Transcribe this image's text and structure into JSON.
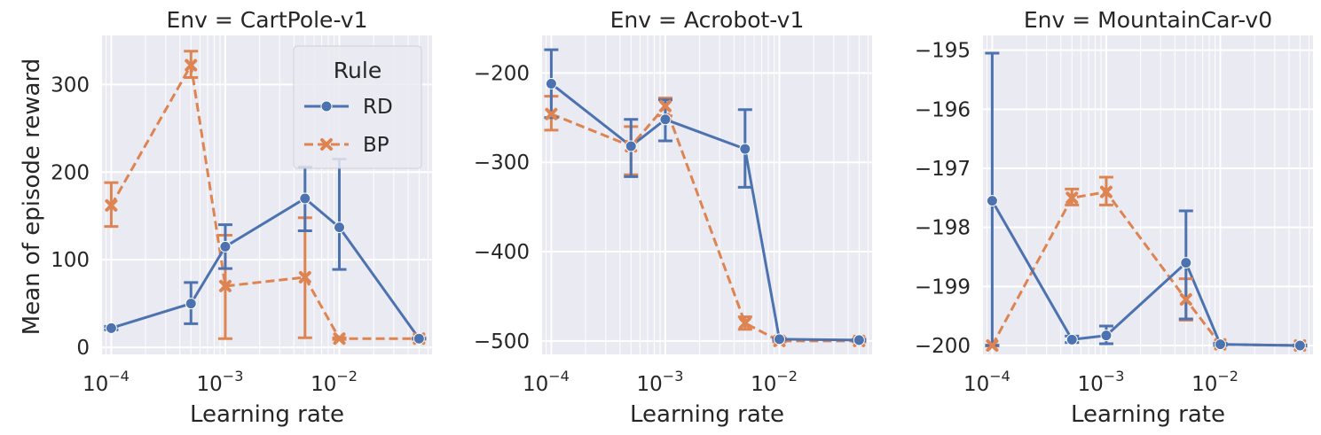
{
  "figure": {
    "ylabel": "Mean of episode reward",
    "xlabel": "Learning rate",
    "legend": {
      "title": "Rule",
      "location": "top-right",
      "panel": 0,
      "entries": [
        {
          "label": "RD",
          "series": "RD"
        },
        {
          "label": "BP",
          "series": "BP"
        }
      ]
    }
  },
  "colors": {
    "RD": "#4c72b0",
    "BP": "#dd8452",
    "panel_bg": "#eaeaf2",
    "grid": "#ffffff",
    "text": "#262626"
  },
  "chart_data": [
    {
      "type": "line",
      "title": "Env = CartPole-v1",
      "xlabel": "Learning rate",
      "ylabel": "Mean of episode reward",
      "xscale": "log",
      "xlim": [
        8.3e-05,
        0.065
      ],
      "ylim": [
        -8,
        356
      ],
      "yticks": [
        0,
        100,
        200,
        300
      ],
      "ytick_labels": [
        "0",
        "100",
        "200",
        "300"
      ],
      "xticks": [
        0.0001,
        0.001,
        0.01
      ],
      "xtick_labels": [
        "−4",
        "−3",
        "−2"
      ],
      "grid": true,
      "x": [
        0.0001,
        0.0005,
        0.001,
        0.005,
        0.01,
        0.05
      ],
      "series": [
        {
          "name": "RD",
          "marker": "circle",
          "linestyle": "solid",
          "values": [
            22,
            50,
            115,
            170,
            137,
            10
          ],
          "err_low": [
            20,
            27,
            90,
            133,
            89,
            10
          ],
          "err_high": [
            24,
            74,
            140,
            206,
            215,
            10
          ]
        },
        {
          "name": "BP",
          "marker": "x",
          "linestyle": "dashed",
          "values": [
            162,
            322,
            70,
            80,
            10,
            10
          ],
          "err_low": [
            138,
            308,
            10,
            11,
            9,
            9
          ],
          "err_high": [
            188,
            338,
            128,
            148,
            11,
            11
          ]
        }
      ]
    },
    {
      "type": "line",
      "title": "Env = Acrobot-v1",
      "xlabel": "Learning rate",
      "ylabel": "",
      "xscale": "log",
      "xlim": [
        8.3e-05,
        0.065
      ],
      "ylim": [
        -515,
        -158
      ],
      "yticks": [
        -500,
        -400,
        -300,
        -200
      ],
      "ytick_labels": [
        "−500",
        "−400",
        "−300",
        "−200"
      ],
      "xticks": [
        0.0001,
        0.001,
        0.01
      ],
      "xtick_labels": [
        "−4",
        "−3",
        "−2"
      ],
      "grid": true,
      "x": [
        0.0001,
        0.0005,
        0.001,
        0.005,
        0.01,
        0.05
      ],
      "series": [
        {
          "name": "RD",
          "marker": "circle",
          "linestyle": "solid",
          "values": [
            -212,
            -282,
            -252,
            -285,
            -498,
            -499
          ],
          "err_low": [
            -250,
            -316,
            -276,
            -328,
            -499,
            -500
          ],
          "err_high": [
            -174,
            -252,
            -230,
            -241,
            -497,
            -498
          ]
        },
        {
          "name": "BP",
          "marker": "x",
          "linestyle": "dashed",
          "values": [
            -246,
            -282,
            -237,
            -480,
            -500,
            -500
          ],
          "err_low": [
            -264,
            -314,
            -248,
            -487,
            -501,
            -501
          ],
          "err_high": [
            -226,
            -260,
            -228,
            -473,
            -499,
            -499
          ]
        }
      ]
    },
    {
      "type": "line",
      "title": "Env = MountainCar-v0",
      "xlabel": "Learning rate",
      "ylabel": "",
      "xscale": "log",
      "xlim": [
        8.3e-05,
        0.065
      ],
      "ylim": [
        -200.15,
        -194.75
      ],
      "yticks": [
        -200,
        -199,
        -198,
        -197,
        -196,
        -195
      ],
      "ytick_labels": [
        "−200",
        "−199",
        "−198",
        "−197",
        "−196",
        "−195"
      ],
      "xticks": [
        0.0001,
        0.001,
        0.01
      ],
      "xtick_labels": [
        "−4",
        "−3",
        "−2"
      ],
      "grid": true,
      "x": [
        0.0001,
        0.0005,
        0.001,
        0.005,
        0.01,
        0.05
      ],
      "series": [
        {
          "name": "RD",
          "marker": "circle",
          "linestyle": "solid",
          "values": [
            -197.55,
            -199.9,
            -199.83,
            -198.6,
            -199.98,
            -200.0
          ],
          "err_low": [
            -200.0,
            -199.95,
            -199.97,
            -199.55,
            -200.0,
            -200.01
          ],
          "err_high": [
            -195.05,
            -199.84,
            -199.67,
            -197.72,
            -199.96,
            -199.99
          ]
        },
        {
          "name": "BP",
          "marker": "x",
          "linestyle": "dashed",
          "values": [
            -200.0,
            -197.5,
            -197.4,
            -199.22,
            -199.98,
            -200.0
          ],
          "err_low": [
            -200.01,
            -197.62,
            -197.62,
            -199.57,
            -199.99,
            -200.01
          ],
          "err_high": [
            -199.99,
            -197.35,
            -197.15,
            -198.87,
            -199.97,
            -199.99
          ]
        }
      ]
    }
  ]
}
